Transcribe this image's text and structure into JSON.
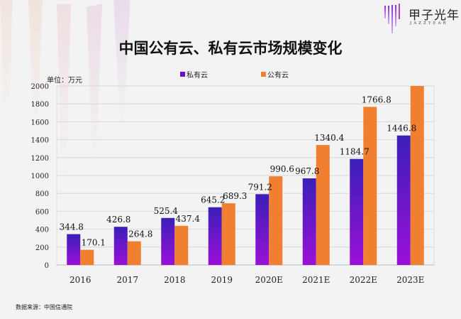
{
  "title": "中国公有云、私有云市场规模变化",
  "logo": {
    "name": "甲子光年",
    "sub": "JAZZYEAR"
  },
  "unit_label": "单位：万元",
  "source": "数据来源：中国信通院",
  "colors": {
    "private_top": "#3a1fb8",
    "private_bottom": "#9a10d8",
    "public": "#f07f30",
    "grid": "#d8d8d8",
    "background": "#f3f3f3"
  },
  "chart_data": {
    "type": "bar",
    "categories": [
      "2016",
      "2017",
      "2018",
      "2019",
      "2020E",
      "2021E",
      "2022E",
      "2023E"
    ],
    "series": [
      {
        "name": "私有云",
        "values": [
          344.8,
          426.8,
          525.4,
          645.2,
          791.2,
          967.8,
          1184.7,
          1446.8
        ],
        "labels": [
          "344.8",
          "426.8",
          "525.4",
          "645.2",
          "791.2",
          "967.8",
          "1184.7",
          "1446.8"
        ]
      },
      {
        "name": "公有云",
        "values": [
          170.1,
          264.8,
          437.4,
          689.3,
          990.6,
          1340.4,
          1766.8,
          2000
        ],
        "labels": [
          "170.1",
          "264.8",
          "437.4",
          "689.3",
          "990.6",
          "1340.4",
          "1766.8",
          ""
        ]
      }
    ],
    "ylim": [
      0,
      2000
    ],
    "yticks": [
      "0",
      "200",
      "400",
      "600",
      "800",
      "1000",
      "1200",
      "1400",
      "1600",
      "1800",
      "2000"
    ],
    "grid": true,
    "legend": "top"
  }
}
